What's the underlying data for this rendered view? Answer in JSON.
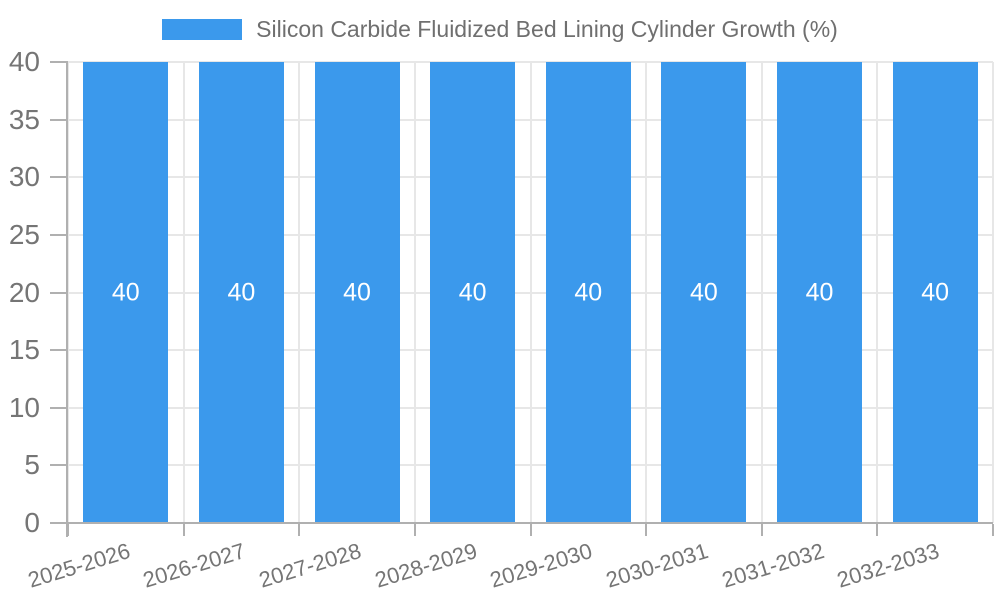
{
  "chart_data": {
    "type": "bar",
    "title": "",
    "xlabel": "",
    "ylabel": "",
    "series_name": "Silicon Carbide Fluidized Bed Lining Cylinder Growth (%)",
    "categories": [
      "2025-2026",
      "2026-2027",
      "2027-2028",
      "2028-2029",
      "2029-2030",
      "2030-2031",
      "2031-2032",
      "2032-2033"
    ],
    "values": [
      40,
      40,
      40,
      40,
      40,
      40,
      40,
      40
    ],
    "bar_labels": [
      "40",
      "40",
      "40",
      "40",
      "40",
      "40",
      "40",
      "40"
    ],
    "yticks": [
      0,
      5,
      10,
      15,
      20,
      25,
      30,
      35,
      40
    ],
    "ylim": [
      0,
      40
    ],
    "grid": true,
    "legend_position": "top-center",
    "bar_label_position": "inside-middle",
    "colors": {
      "bar": "#3b99ec",
      "grid": "#e7e7e7",
      "axis": "#b0b0b0",
      "tick_text": "#757575",
      "bar_label": "#ffffff",
      "background": "#ffffff"
    }
  }
}
